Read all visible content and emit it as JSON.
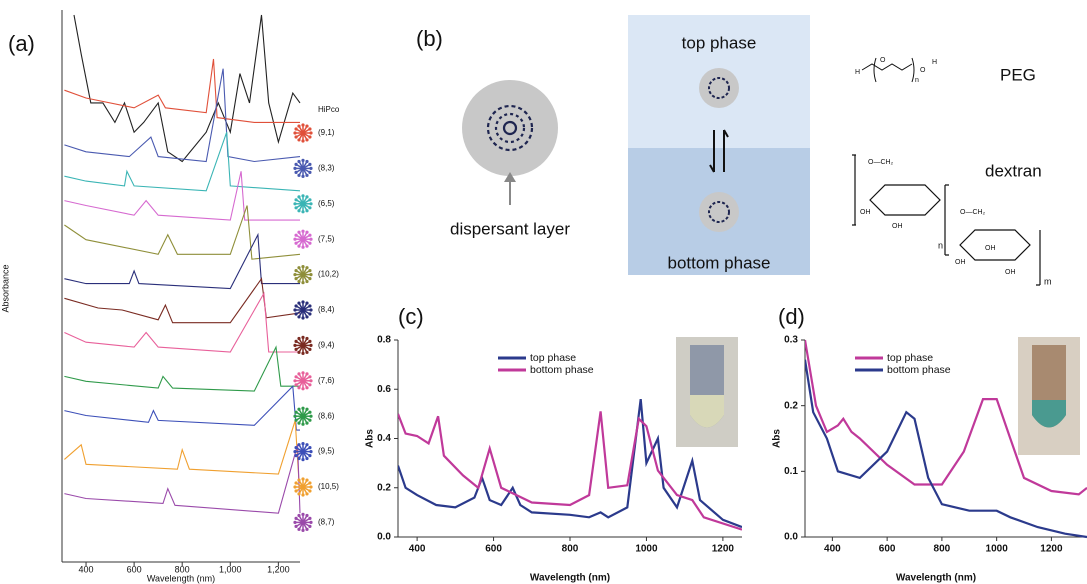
{
  "chart_data": [
    {
      "type": "line",
      "panel_label": "(a)",
      "x_label": "Wavelength (nm)",
      "y_label": "Absorbance",
      "xlim": [
        300,
        1290
      ],
      "xticks": [
        400,
        600,
        800,
        {
          "value": 1000,
          "label": "1,000"
        },
        {
          "value": 1200,
          "label": "1,200"
        }
      ],
      "ylim": [
        0,
        56
      ],
      "legend": "right",
      "legend_title": "HiPco",
      "series": [
        {
          "color": "#222222",
          "x": [
            350,
            380,
            420,
            470,
            520,
            560,
            600,
            640,
            700,
            740,
            800,
            900,
            950,
            1000,
            1040,
            1080,
            1130,
            1160,
            1200,
            1260,
            1290
          ],
          "values": [
            56,
            52,
            47,
            47,
            45,
            47,
            44,
            45,
            47,
            42,
            41,
            44,
            47,
            44,
            50,
            47,
            56,
            47,
            43,
            48,
            47
          ]
        },
        {
          "name": "(9,1)",
          "color": "#e0503a",
          "x": [
            310,
            400,
            600,
            700,
            730,
            900,
            930,
            945,
            1100,
            1290
          ],
          "values": [
            48.3,
            47.5,
            46.5,
            47.8,
            46.5,
            46,
            51.5,
            45.5,
            45,
            45
          ]
        },
        {
          "name": "(8,3)",
          "color": "#4a5ab0",
          "x": [
            310,
            400,
            580,
            670,
            700,
            900,
            970,
            990,
            1100,
            1290
          ],
          "values": [
            42.7,
            42,
            41.5,
            43.5,
            41.5,
            41,
            50.5,
            41.5,
            41,
            41.5
          ]
        },
        {
          "name": "(6,5)",
          "color": "#3bb5b5",
          "x": [
            310,
            400,
            560,
            570,
            600,
            900,
            985,
            1000,
            1290
          ],
          "values": [
            39.5,
            39,
            38.5,
            40,
            38.5,
            38,
            44,
            38.5,
            38
          ]
        },
        {
          "name": "(7,5)",
          "color": "#d66ad0",
          "x": [
            310,
            400,
            600,
            650,
            700,
            1000,
            1045,
            1060,
            1290
          ],
          "values": [
            37,
            36.5,
            35.5,
            37,
            35.5,
            35,
            40,
            35,
            35
          ]
        },
        {
          "name": "(10,2)",
          "color": "#8f8f3a",
          "x": [
            310,
            400,
            700,
            740,
            780,
            1000,
            1070,
            1090,
            1290
          ],
          "values": [
            34.5,
            33,
            31.5,
            33.5,
            31.5,
            31.5,
            36.5,
            31,
            31.5
          ]
        },
        {
          "name": "(8,4)",
          "color": "#2a2f7a",
          "x": [
            310,
            400,
            580,
            600,
            620,
            1000,
            1115,
            1130,
            1290
          ],
          "values": [
            29,
            28.5,
            28.5,
            29.8,
            28.5,
            28,
            33.5,
            28.5,
            28.5
          ]
        },
        {
          "name": "(9,4)",
          "color": "#7a2b22",
          "x": [
            310,
            450,
            550,
            700,
            730,
            760,
            1000,
            1130,
            1150,
            1290
          ],
          "values": [
            27,
            26,
            25.8,
            24.8,
            26.3,
            24.5,
            24.5,
            29,
            25,
            25.5
          ]
        },
        {
          "name": "(7,6)",
          "color": "#e8609a",
          "x": [
            310,
            400,
            600,
            650,
            700,
            1000,
            1140,
            1160,
            1290
          ],
          "values": [
            23.5,
            22.5,
            22,
            23.5,
            22,
            21.5,
            27.5,
            21.5,
            21.5
          ]
        },
        {
          "name": "(8,6)",
          "color": "#2f9a4a",
          "x": [
            310,
            400,
            700,
            720,
            760,
            1100,
            1190,
            1210,
            1290
          ],
          "values": [
            19,
            18.5,
            17.8,
            19,
            17.8,
            17.5,
            22,
            18,
            18
          ]
        },
        {
          "name": "(9,5)",
          "color": "#3c4fb8",
          "x": [
            310,
            400,
            660,
            680,
            700,
            1100,
            1260,
            1275,
            1290
          ],
          "values": [
            15.5,
            15,
            14.3,
            15.5,
            14.5,
            14,
            18,
            13.5,
            13.5
          ]
        },
        {
          "name": "(10,5)",
          "color": "#f0a030",
          "x": [
            310,
            380,
            400,
            780,
            800,
            830,
            1200,
            1270,
            1285
          ],
          "values": [
            10.5,
            12,
            10,
            9.5,
            11.5,
            9.5,
            9,
            14.5,
            8.5
          ]
        },
        {
          "name": "(8,7)",
          "color": "#9a4aaa",
          "x": [
            310,
            400,
            720,
            740,
            770,
            1200,
            1280,
            1290
          ],
          "values": [
            7,
            6.5,
            6,
            7.5,
            5.8,
            5,
            12,
            5
          ]
        }
      ]
    },
    {
      "type": "line",
      "panel_label": "(c)",
      "x_label": "Wavelength (nm)",
      "y_label": "Abs",
      "xlim": [
        350,
        1250
      ],
      "xticks": [
        400,
        600,
        800,
        1000,
        1200
      ],
      "ylim": [
        0,
        0.8
      ],
      "yticks": [
        {
          "value": 0,
          "label": "0.0"
        },
        0.2,
        0.4,
        0.6,
        0.8
      ],
      "legend": "top-left",
      "series": [
        {
          "name": "top phase",
          "color": "#2b3a8c",
          "x": [
            350,
            370,
            400,
            450,
            500,
            550,
            570,
            590,
            620,
            650,
            670,
            700,
            800,
            850,
            880,
            900,
            950,
            985,
            1000,
            1030,
            1045,
            1080,
            1120,
            1140,
            1200,
            1250
          ],
          "values": [
            0.29,
            0.2,
            0.17,
            0.13,
            0.12,
            0.16,
            0.24,
            0.15,
            0.13,
            0.2,
            0.13,
            0.1,
            0.09,
            0.08,
            0.1,
            0.08,
            0.12,
            0.56,
            0.3,
            0.4,
            0.2,
            0.12,
            0.31,
            0.15,
            0.07,
            0.04
          ]
        },
        {
          "name": "bottom phase",
          "color": "#c0399a",
          "x": [
            350,
            370,
            400,
            430,
            455,
            470,
            520,
            560,
            590,
            620,
            660,
            700,
            800,
            850,
            880,
            900,
            950,
            980,
            1000,
            1030,
            1080,
            1120,
            1150,
            1250
          ],
          "values": [
            0.5,
            0.42,
            0.41,
            0.38,
            0.49,
            0.33,
            0.25,
            0.2,
            0.36,
            0.2,
            0.17,
            0.14,
            0.13,
            0.17,
            0.51,
            0.2,
            0.21,
            0.48,
            0.45,
            0.27,
            0.17,
            0.15,
            0.08,
            0.03
          ]
        }
      ]
    },
    {
      "type": "line",
      "panel_label": "(d)",
      "x_label": "Wavelength (nm)",
      "y_label": "Abs",
      "xlim": [
        300,
        1330
      ],
      "xticks": [
        400,
        600,
        800,
        1000,
        1200
      ],
      "ylim": [
        0,
        0.3
      ],
      "yticks": [
        {
          "value": 0,
          "label": "0.0"
        },
        0.1,
        0.2,
        0.3
      ],
      "legend": "top-left",
      "series": [
        {
          "name": "top phase",
          "color": "#c0399a",
          "x": [
            300,
            340,
            380,
            420,
            440,
            470,
            500,
            600,
            700,
            800,
            880,
            950,
            1000,
            1050,
            1100,
            1200,
            1300,
            1330
          ],
          "values": [
            0.3,
            0.2,
            0.16,
            0.17,
            0.18,
            0.16,
            0.15,
            0.11,
            0.08,
            0.08,
            0.13,
            0.21,
            0.21,
            0.15,
            0.09,
            0.07,
            0.065,
            0.075
          ]
        },
        {
          "name": "bottom phase",
          "color": "#2b3a8c",
          "x": [
            300,
            330,
            380,
            420,
            500,
            600,
            670,
            700,
            750,
            800,
            900,
            1000,
            1050,
            1150,
            1250,
            1330
          ],
          "values": [
            0.27,
            0.19,
            0.15,
            0.1,
            0.09,
            0.13,
            0.19,
            0.18,
            0.09,
            0.05,
            0.04,
            0.04,
            0.03,
            0.015,
            0.005,
            0
          ]
        }
      ]
    }
  ],
  "diagram": {
    "panel_label": "(b)",
    "dispersant_label": "dispersant layer",
    "top_phase": "top phase",
    "bottom_phase": "bottom phase",
    "peg_label": "PEG",
    "dextran_label": "dextran",
    "peg_formula": [
      "H",
      "O",
      "n",
      "O",
      "H"
    ],
    "dextran_formula": [
      "O—CH₂",
      "OH",
      "OH",
      "n",
      "O—CH₂",
      "OH",
      "OH",
      "OH",
      "m"
    ]
  }
}
